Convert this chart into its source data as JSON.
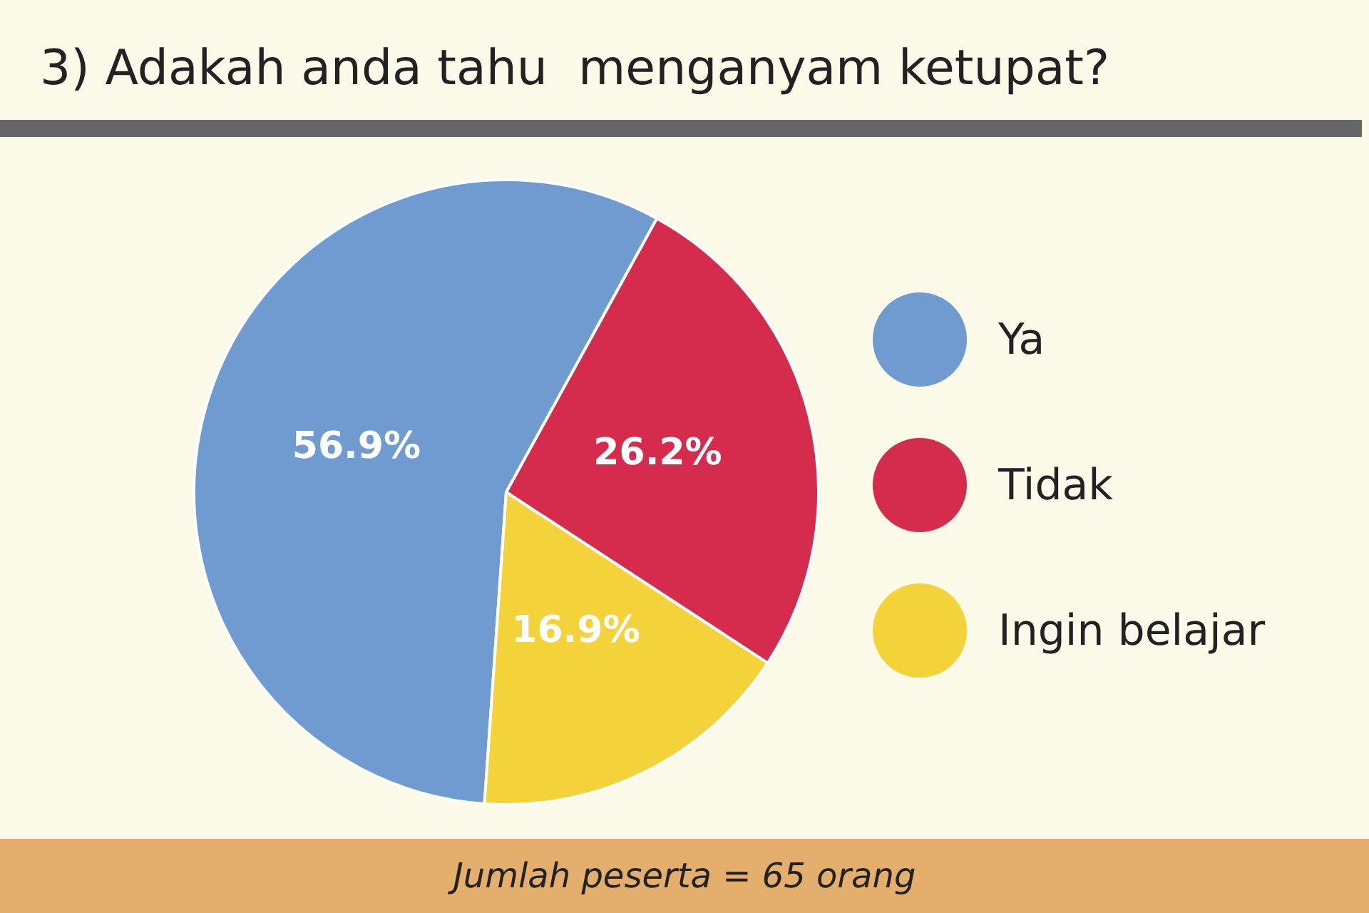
{
  "chart_data": {
    "type": "pie",
    "title": "3) Adakah anda tahu  menganyam ketupat?",
    "categories": [
      "Ya",
      "Tidak",
      "Ingin belajar"
    ],
    "values": [
      56.9,
      26.2,
      16.9
    ],
    "colors": [
      "#6f9bd1",
      "#d52b4c",
      "#f4d23a"
    ],
    "value_labels": [
      "56.9%",
      "26.2%",
      "16.9%"
    ],
    "legend": "right",
    "annotations": [
      "Jumlah peserta = 65 orang"
    ]
  }
}
